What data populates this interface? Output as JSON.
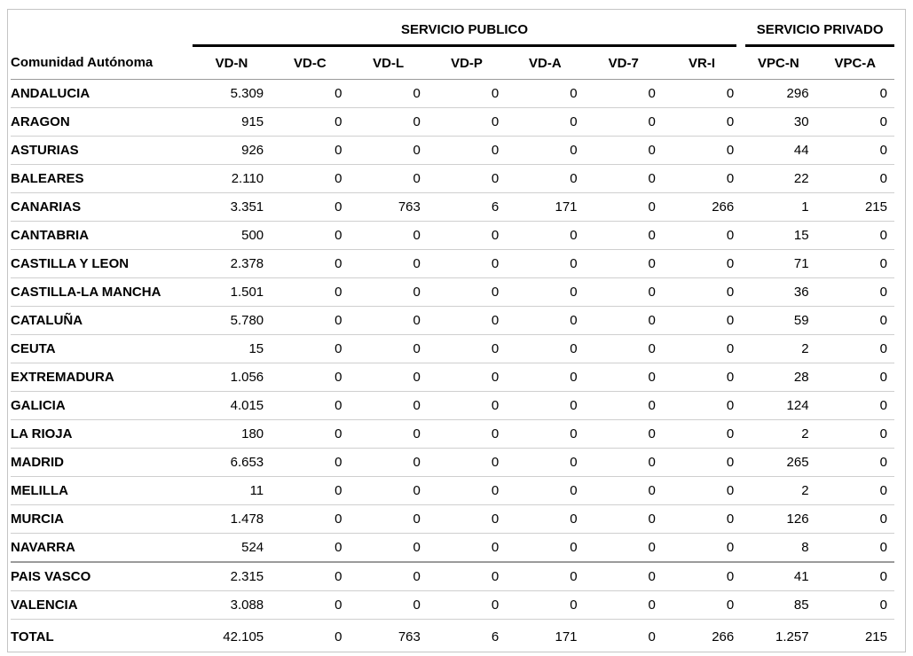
{
  "header": {
    "group_public": "SERVICIO PUBLICO",
    "group_private": "SERVICIO PRIVADO",
    "first_column": "Comunidad Autónoma",
    "columns": [
      "VD-N",
      "VD-C",
      "VD-L",
      "VD-P",
      "VD-A",
      "VD-7",
      "VR-I",
      "VPC-N",
      "VPC-A"
    ]
  },
  "rows": [
    {
      "name": "ANDALUCIA",
      "values": [
        "5.309",
        "0",
        "0",
        "0",
        "0",
        "0",
        "0",
        "296",
        "0"
      ]
    },
    {
      "name": "ARAGON",
      "values": [
        "915",
        "0",
        "0",
        "0",
        "0",
        "0",
        "0",
        "30",
        "0"
      ]
    },
    {
      "name": "ASTURIAS",
      "values": [
        "926",
        "0",
        "0",
        "0",
        "0",
        "0",
        "0",
        "44",
        "0"
      ]
    },
    {
      "name": "BALEARES",
      "values": [
        "2.110",
        "0",
        "0",
        "0",
        "0",
        "0",
        "0",
        "22",
        "0"
      ]
    },
    {
      "name": "CANARIAS",
      "values": [
        "3.351",
        "0",
        "763",
        "6",
        "171",
        "0",
        "266",
        "1",
        "215"
      ]
    },
    {
      "name": "CANTABRIA",
      "values": [
        "500",
        "0",
        "0",
        "0",
        "0",
        "0",
        "0",
        "15",
        "0"
      ]
    },
    {
      "name": "CASTILLA Y LEON",
      "values": [
        "2.378",
        "0",
        "0",
        "0",
        "0",
        "0",
        "0",
        "71",
        "0"
      ]
    },
    {
      "name": "CASTILLA-LA MANCHA",
      "values": [
        "1.501",
        "0",
        "0",
        "0",
        "0",
        "0",
        "0",
        "36",
        "0"
      ]
    },
    {
      "name": "CATALUÑA",
      "values": [
        "5.780",
        "0",
        "0",
        "0",
        "0",
        "0",
        "0",
        "59",
        "0"
      ]
    },
    {
      "name": "CEUTA",
      "values": [
        "15",
        "0",
        "0",
        "0",
        "0",
        "0",
        "0",
        "2",
        "0"
      ]
    },
    {
      "name": "EXTREMADURA",
      "values": [
        "1.056",
        "0",
        "0",
        "0",
        "0",
        "0",
        "0",
        "28",
        "0"
      ]
    },
    {
      "name": "GALICIA",
      "values": [
        "4.015",
        "0",
        "0",
        "0",
        "0",
        "0",
        "0",
        "124",
        "0"
      ]
    },
    {
      "name": "LA RIOJA",
      "values": [
        "180",
        "0",
        "0",
        "0",
        "0",
        "0",
        "0",
        "2",
        "0"
      ]
    },
    {
      "name": "MADRID",
      "values": [
        "6.653",
        "0",
        "0",
        "0",
        "0",
        "0",
        "0",
        "265",
        "0"
      ]
    },
    {
      "name": "MELILLA",
      "values": [
        "11",
        "0",
        "0",
        "0",
        "0",
        "0",
        "0",
        "2",
        "0"
      ]
    },
    {
      "name": "MURCIA",
      "values": [
        "1.478",
        "0",
        "0",
        "0",
        "0",
        "0",
        "0",
        "126",
        "0"
      ]
    },
    {
      "name": "NAVARRA",
      "values": [
        "524",
        "0",
        "0",
        "0",
        "0",
        "0",
        "0",
        "8",
        "0"
      ]
    },
    {
      "name": "PAIS VASCO",
      "values": [
        "2.315",
        "0",
        "0",
        "0",
        "0",
        "0",
        "0",
        "41",
        "0"
      ]
    },
    {
      "name": "VALENCIA",
      "values": [
        "3.088",
        "0",
        "0",
        "0",
        "0",
        "0",
        "0",
        "85",
        "0"
      ]
    }
  ],
  "total": {
    "name": "TOTAL",
    "values": [
      "42.105",
      "0",
      "763",
      "6",
      "171",
      "0",
      "266",
      "1.257",
      "215"
    ]
  }
}
